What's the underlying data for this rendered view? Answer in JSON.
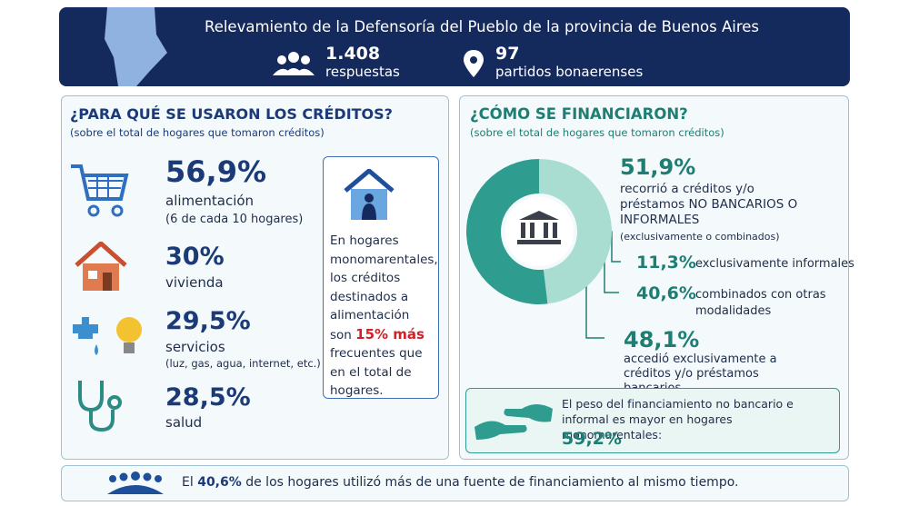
{
  "header": {
    "title": "Relevamiento de la Defensoría del Pueblo de la provincia de Buenos Aires",
    "stats": [
      {
        "value": "1.408",
        "label": "respuestas"
      },
      {
        "value": "97",
        "label": "partidos bonaerenses"
      }
    ]
  },
  "uses": {
    "title": "¿PARA QUÉ SE USARON LOS CRÉDITOS?",
    "subtitle": "(sobre el total de hogares que tomaron créditos)",
    "items": [
      {
        "value": "56,9%",
        "label": "alimentación",
        "note": "(6 de cada 10 hogares)"
      },
      {
        "value": "30%",
        "label": "vivienda"
      },
      {
        "value": "29,5%",
        "label": "servicios",
        "note": "(luz, gas, agua, internet, etc.)"
      },
      {
        "value": "28,5%",
        "label": "salud"
      }
    ],
    "callout": {
      "text_before": "En hogares monomarentales, los créditos destinados a alimentación son",
      "highlight": "15% más",
      "text_after": "frecuentes que en el total de hogares."
    }
  },
  "financing": {
    "title": "¿CÓMO SE FINANCIARON?",
    "subtitle": "(sobre el total de hogares que tomaron créditos)",
    "donut": {
      "values": [
        51.9,
        48.1
      ],
      "value_labels": [
        "51,9%",
        "48,1%"
      ],
      "colors": [
        "#2e9c8e",
        "#a9ddd1"
      ]
    },
    "non_bank": {
      "desc": "recorrió a créditos y/o préstamos NO BANCARIOS O INFORMALES",
      "note": "(exclusivamente o combinados)",
      "breakdown": [
        {
          "value": "11,3%",
          "label": "exclusivamente informales"
        },
        {
          "value": "40,6%",
          "label": "combinados con otras modalidades"
        }
      ]
    },
    "bank": {
      "desc": "accedió exclusivamente a créditos y/o préstamos bancarios"
    },
    "monomarental": {
      "text": "El peso del financiamiento no bancario e informal es mayor en hogares monomarentales:",
      "value": "59,2%"
    }
  },
  "footer": {
    "text_before": "El",
    "value": "40,6%",
    "text_after": "de los hogares utilizó más de una fuente de financiamiento al mismo tiempo."
  }
}
